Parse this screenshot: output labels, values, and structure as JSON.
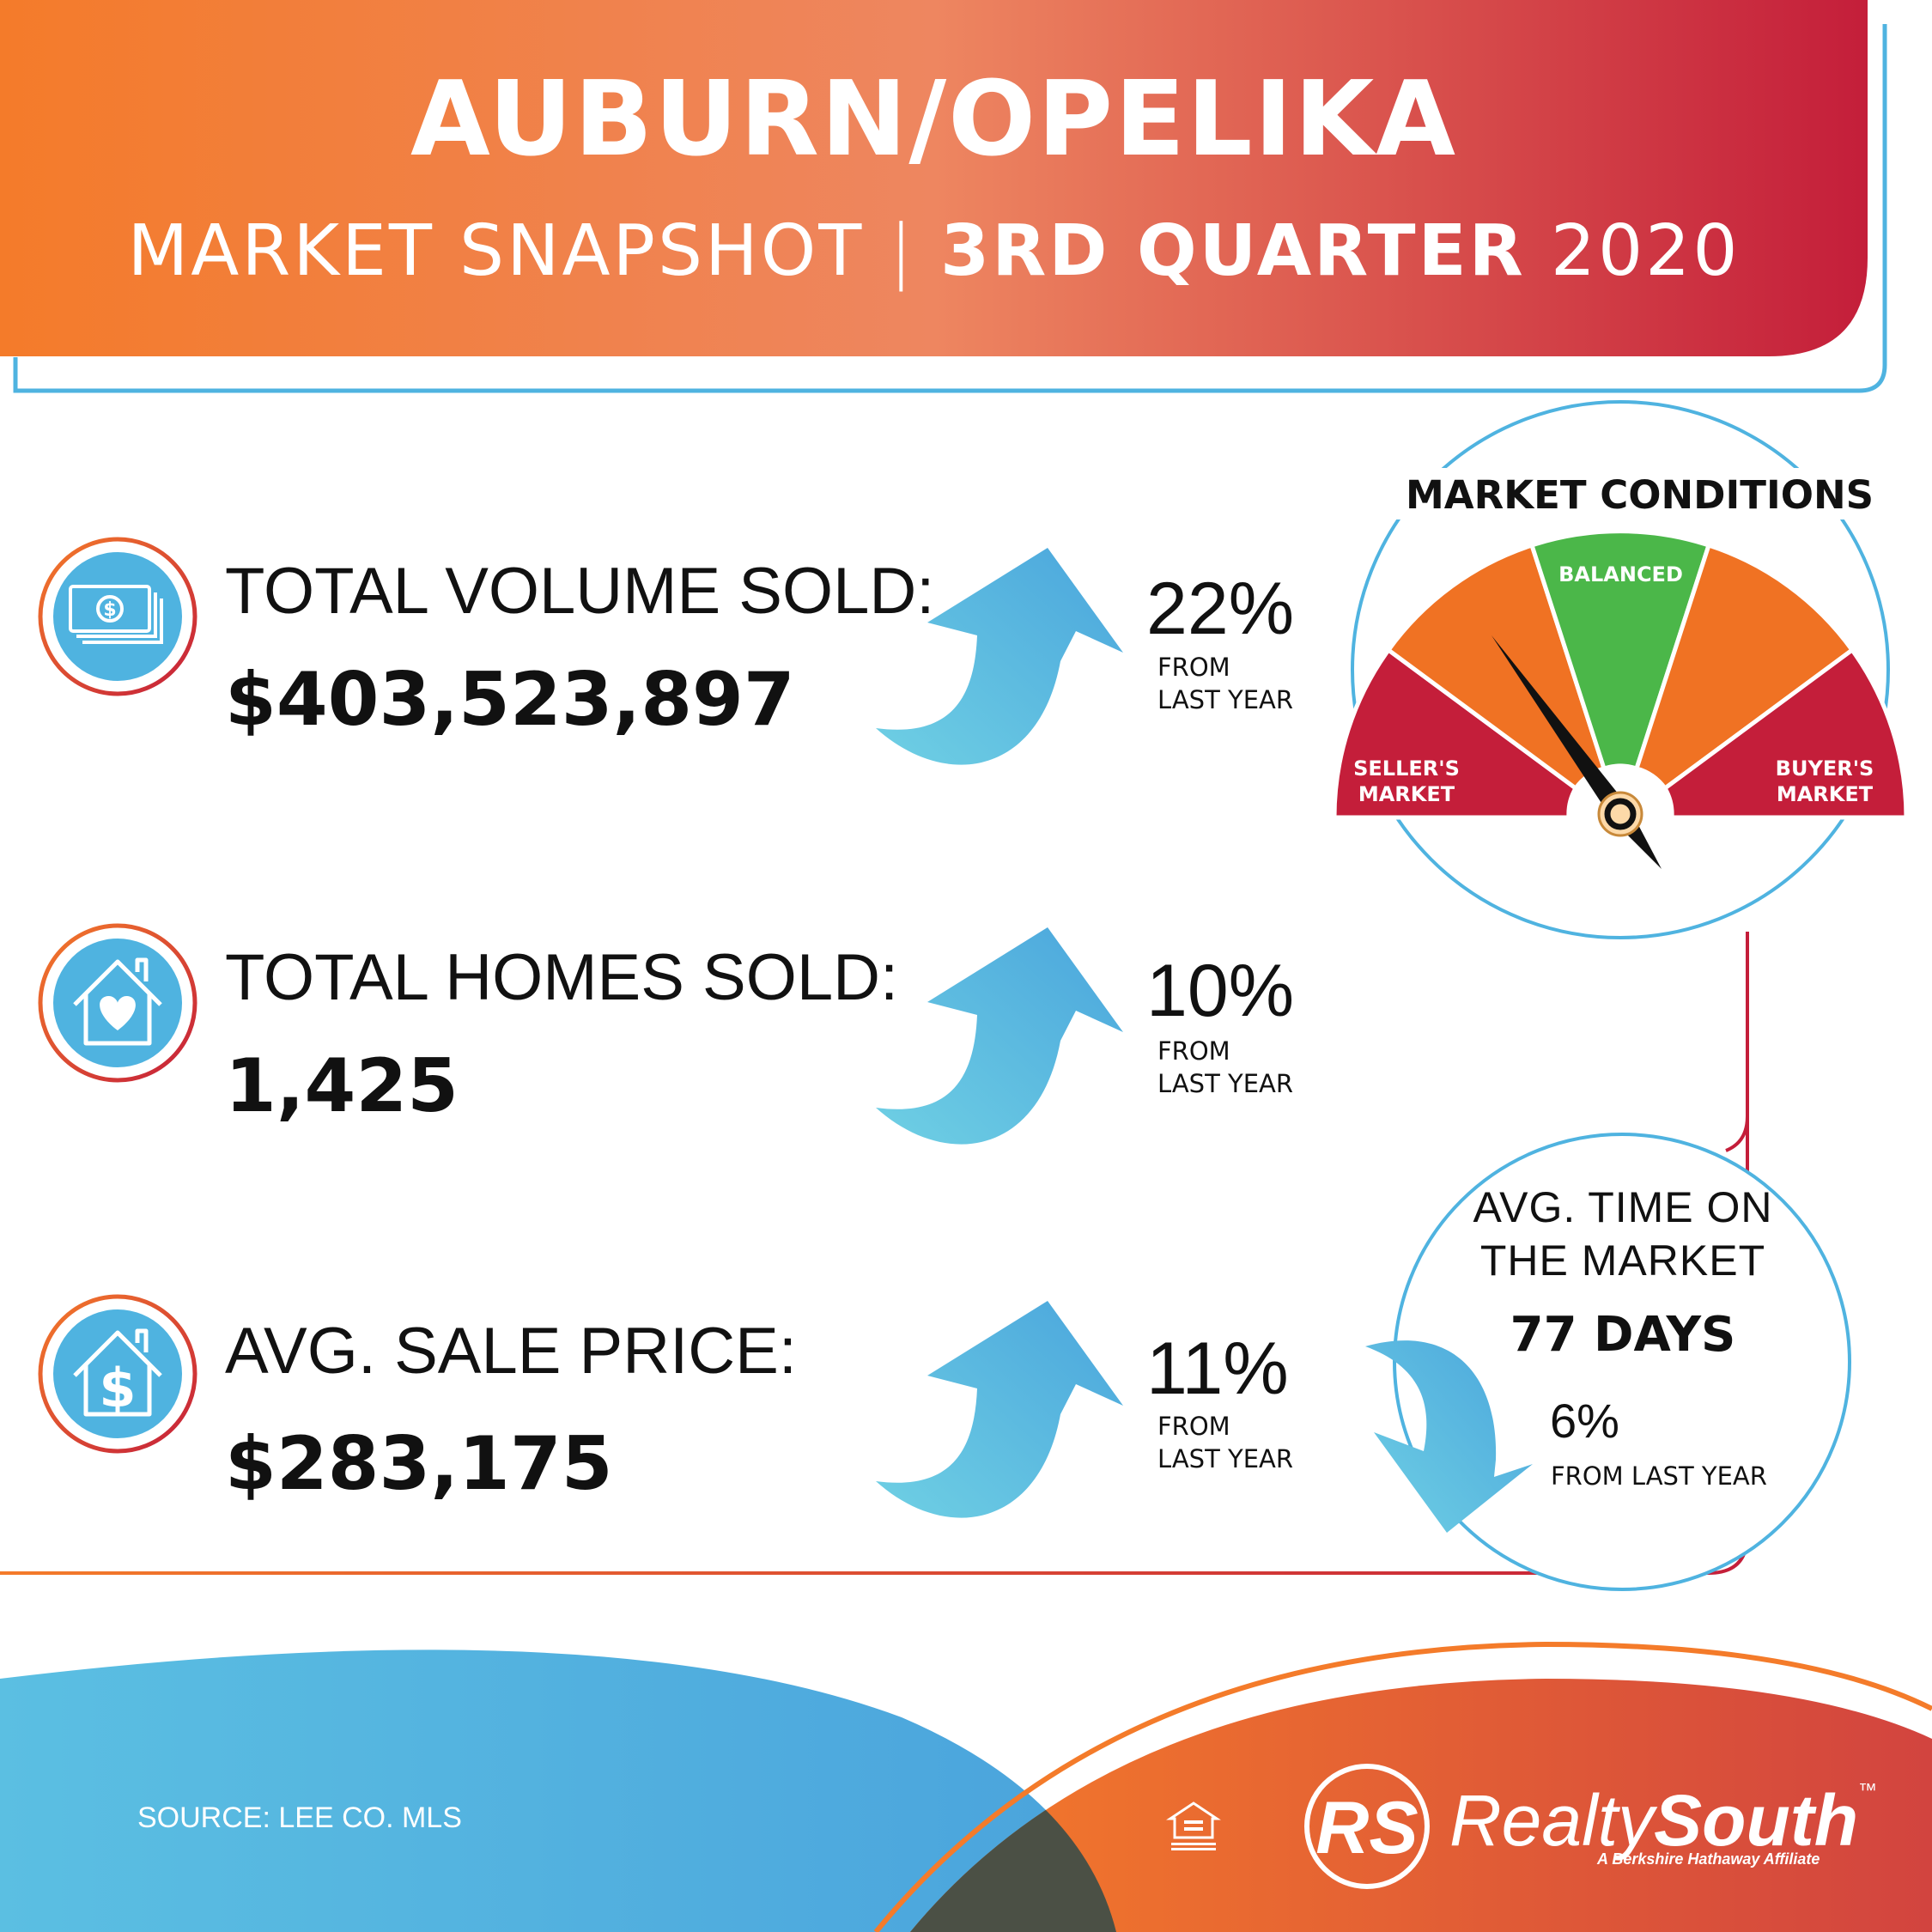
{
  "header": {
    "title": "AUBURN/OPELIKA",
    "subtitle_light": "MARKET SNAPSHOT",
    "subtitle_divider": "|",
    "subtitle_bold": "3RD QUARTER",
    "subtitle_year": "2020"
  },
  "stats": [
    {
      "label": "TOTAL VOLUME SOLD:",
      "value": "$403,523,897",
      "change_pct": "22%",
      "change_from_1": "FROM",
      "change_from_2": "LAST YEAR",
      "direction": "up",
      "icon": "money-bills-icon"
    },
    {
      "label": "TOTAL HOMES SOLD:",
      "value": "1,425",
      "change_pct": "10%",
      "change_from_1": "FROM",
      "change_from_2": "LAST YEAR",
      "direction": "up",
      "icon": "house-heart-icon"
    },
    {
      "label": "AVG. SALE PRICE:",
      "value": "$283,175",
      "change_pct": "11%",
      "change_from_1": "FROM",
      "change_from_2": "LAST YEAR",
      "direction": "up",
      "icon": "house-dollar-icon"
    }
  ],
  "market_conditions": {
    "title": "MARKET CONDITIONS",
    "balanced": "BALANCED",
    "sellers_1": "SELLER'S",
    "sellers_2": "MARKET",
    "buyers_1": "BUYER'S",
    "buyers_2": "MARKET",
    "needle_position": "seller-side orange segment"
  },
  "time_on_market": {
    "line1": "AVG. TIME ON",
    "line2": "THE MARKET",
    "days": "77 DAYS",
    "change_pct": "6%",
    "change_from": "FROM LAST YEAR",
    "direction": "down"
  },
  "footer": {
    "source": "SOURCE: LEE CO. MLS",
    "brand_light": "Realty",
    "brand_bold": "South",
    "brand_tm": "™",
    "brand_tagline": "A Berkshire Hathaway Affiliate",
    "logo_letters": "RS"
  },
  "colors": {
    "orange": "#f47b2a",
    "red": "#c41e3a",
    "blue": "#4fb3e0",
    "green": "#4bb749",
    "gauge_orange": "#f07223",
    "gauge_red": "#c41e3a"
  }
}
